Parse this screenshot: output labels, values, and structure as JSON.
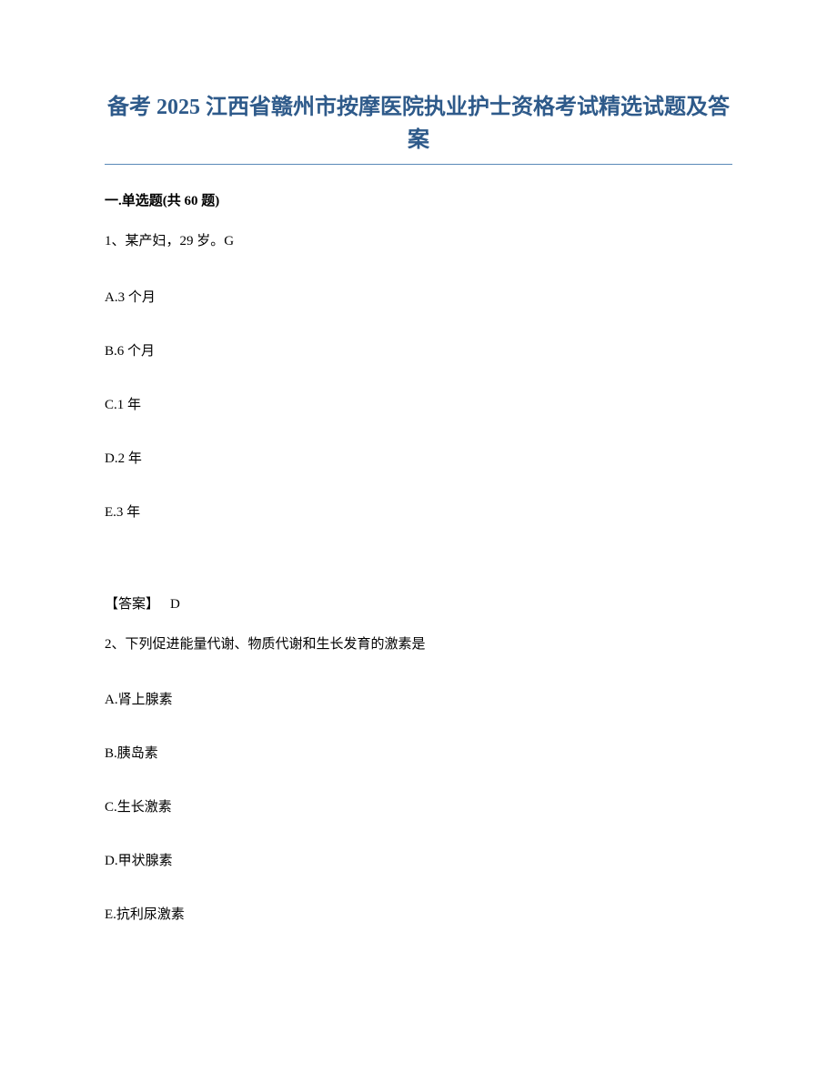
{
  "title": "备考 2025 江西省赣州市按摩医院执业护士资格考试精选试题及答案",
  "title_color": "#2e5a8a",
  "title_fontsize": 24,
  "divider_color": "#5a8ab8",
  "section_header": "一.单选题(共 60 题)",
  "body_fontsize": 15,
  "text_color": "#000000",
  "background_color": "#ffffff",
  "questions": [
    {
      "number": "1、",
      "stem": "某产妇，29 岁。G",
      "options": [
        "A.3 个月",
        "B.6 个月",
        "C.1 年",
        "D.2 年",
        "E.3 年"
      ],
      "answer_label": "【答案】",
      "answer_value": "D"
    },
    {
      "number": "2、",
      "stem": "下列促进能量代谢、物质代谢和生长发育的激素是",
      "options": [
        "A.肾上腺素",
        "B.胰岛素",
        "C.生长激素",
        "D.甲状腺素",
        "E.抗利尿激素"
      ]
    }
  ]
}
